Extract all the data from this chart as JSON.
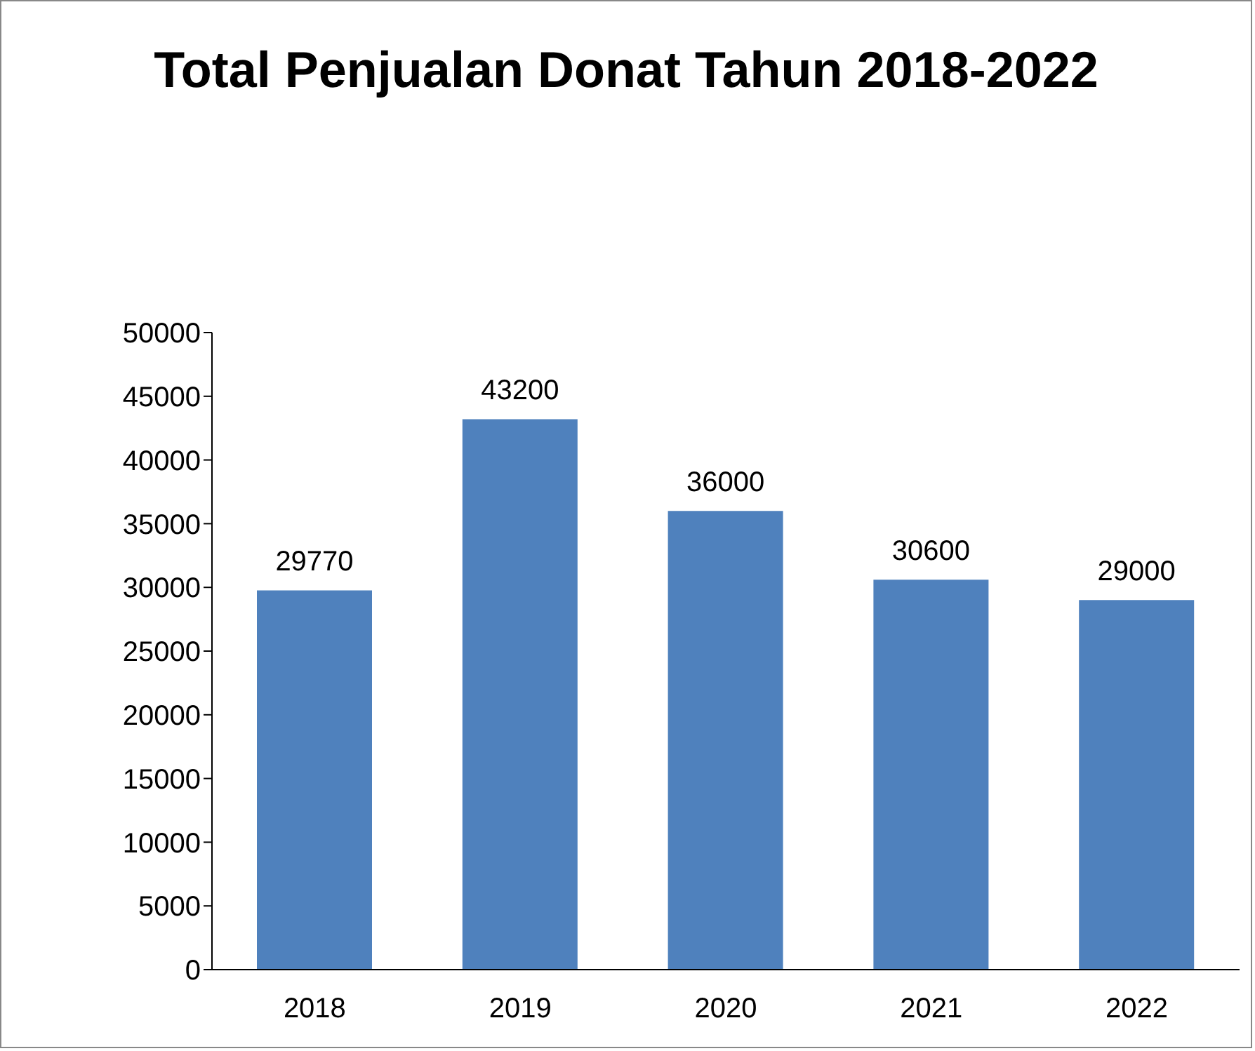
{
  "chart_data": {
    "type": "bar",
    "title": "Total Penjualan Donat Tahun 2018-2022",
    "categories": [
      "2018",
      "2019",
      "2020",
      "2021",
      "2022"
    ],
    "values": [
      29770,
      43200,
      36000,
      30600,
      29000
    ],
    "color": "#4f81bd",
    "ylim": [
      0,
      50000
    ],
    "yticks": [
      0,
      5000,
      10000,
      15000,
      20000,
      25000,
      30000,
      35000,
      40000,
      45000,
      50000
    ],
    "data_labels": true,
    "grid": false,
    "legend": false
  }
}
